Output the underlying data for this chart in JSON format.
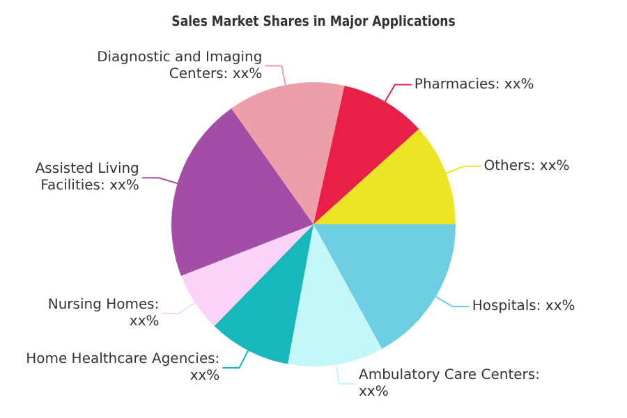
{
  "chart_data": {
    "type": "pie",
    "title": "Sales Market Shares in Major Applications",
    "categories": [
      "Hospitals: xx%",
      "Ambulatory Care Centers: xx%",
      "Home Healthcare Agencies: xx%",
      "Nursing Homes: xx%",
      "Assisted Living Facilities: xx%",
      "Diagnostic and Imaging Centers: xx%",
      "Pharmacies: xx%",
      "Others: xx%"
    ],
    "values": [
      17.0,
      10.9,
      9.4,
      6.8,
      21.1,
      13.3,
      9.8,
      11.7
    ],
    "colors": [
      "#6ccde3",
      "#c4f5f7",
      "#16b8bc",
      "#fad4f7",
      "#a24ea6",
      "#ec9ea9",
      "#ea1f47",
      "#ede523"
    ],
    "legend": false
  }
}
